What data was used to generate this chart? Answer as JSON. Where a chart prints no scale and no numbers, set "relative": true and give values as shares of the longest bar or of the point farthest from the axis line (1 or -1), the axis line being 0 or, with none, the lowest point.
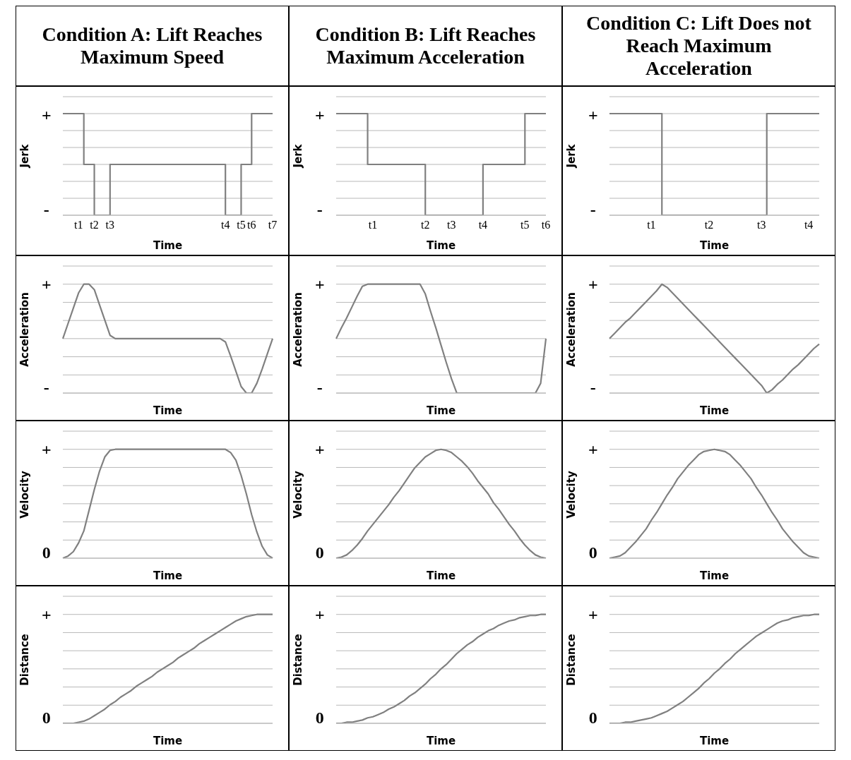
{
  "chart_data": [
    {
      "type": "step",
      "relative": true,
      "title": "Condition A: Lift Reaches Maximum Speed",
      "ylabel": "Jerk",
      "xlabel": "Time",
      "color": "#808080",
      "grid": "y",
      "annotations": [
        "+",
        "-"
      ],
      "categories": [
        null,
        null,
        null,
        "t1",
        null,
        null,
        "t2",
        null,
        null,
        "t3",
        null,
        null,
        null,
        null,
        null,
        null,
        null,
        null,
        null,
        null,
        null,
        null,
        null,
        null,
        null,
        null,
        null,
        null,
        null,
        null,
        null,
        "t4",
        null,
        null,
        "t5",
        null,
        "t6",
        null,
        null,
        null,
        "t7"
      ],
      "values": [
        1,
        1,
        1,
        1,
        0.5,
        0.5,
        0,
        0,
        0,
        0.5,
        0.5,
        0.5,
        0.5,
        0.5,
        0.5,
        0.5,
        0.5,
        0.5,
        0.5,
        0.5,
        0.5,
        0.5,
        0.5,
        0.5,
        0.5,
        0.5,
        0.5,
        0.5,
        0.5,
        0.5,
        0.5,
        0,
        0,
        0,
        0.5,
        0.5,
        1,
        1,
        1,
        1,
        1
      ]
    },
    {
      "type": "step",
      "relative": true,
      "title": "Condition B: Lift Reaches Maximum Acceleration",
      "ylabel": "Jerk",
      "xlabel": "Time",
      "color": "#808080",
      "grid": "y",
      "annotations": [
        "+",
        "-"
      ],
      "categories": [
        null,
        null,
        null,
        null,
        null,
        null,
        null,
        "t1",
        null,
        null,
        null,
        null,
        null,
        null,
        null,
        null,
        null,
        "t2",
        null,
        null,
        null,
        null,
        "t3",
        null,
        null,
        null,
        null,
        null,
        "t4",
        null,
        null,
        null,
        null,
        null,
        null,
        null,
        "t5",
        null,
        null,
        null,
        "t6"
      ],
      "values": [
        1,
        1,
        1,
        1,
        1,
        1,
        0.5,
        0.5,
        0.5,
        0.5,
        0.5,
        0.5,
        0.5,
        0.5,
        0.5,
        0.5,
        0.5,
        0,
        0,
        0,
        0,
        0,
        0,
        0,
        0,
        0,
        0,
        0,
        0.5,
        0.5,
        0.5,
        0.5,
        0.5,
        0.5,
        0.5,
        0.5,
        1,
        1,
        1,
        1,
        1
      ]
    },
    {
      "type": "step",
      "relative": true,
      "title": "Condition C: Lift Does not Reach Maximum Acceleration",
      "ylabel": "Jerk",
      "xlabel": "Time",
      "color": "#808080",
      "grid": "y",
      "annotations": [
        "+",
        "-"
      ],
      "categories": [
        null,
        null,
        null,
        null,
        null,
        null,
        null,
        null,
        "t1",
        null,
        null,
        null,
        null,
        null,
        null,
        null,
        null,
        null,
        null,
        "t2",
        null,
        null,
        null,
        null,
        null,
        null,
        null,
        null,
        null,
        "t3",
        null,
        null,
        null,
        null,
        null,
        null,
        null,
        null,
        "t4",
        null,
        null
      ],
      "values": [
        1,
        1,
        1,
        1,
        1,
        1,
        1,
        1,
        1,
        1,
        0,
        0,
        0,
        0,
        0,
        0,
        0,
        0,
        0,
        0,
        0,
        0,
        0,
        0,
        0,
        0,
        0,
        0,
        0,
        0,
        1,
        1,
        1,
        1,
        1,
        1,
        1,
        1,
        1,
        1,
        1
      ]
    },
    {
      "type": "line",
      "relative": true,
      "ylabel": "Acceleration",
      "xlabel": "Time",
      "color": "#808080",
      "grid": "y",
      "annotations": [
        "+",
        "-"
      ],
      "categories": [
        null,
        null,
        null,
        null,
        null,
        null,
        null,
        null,
        null,
        null,
        null,
        null,
        null,
        null,
        null,
        null,
        null,
        null,
        null,
        null,
        null,
        null,
        null,
        null,
        null,
        null,
        null,
        null,
        null,
        null,
        null,
        null,
        null,
        null,
        null,
        null,
        null,
        null,
        null,
        null,
        null
      ],
      "values": [
        0.5,
        0.64,
        0.78,
        0.92,
        1,
        1,
        0.95,
        0.81,
        0.67,
        0.53,
        0.5,
        0.5,
        0.5,
        0.5,
        0.5,
        0.5,
        0.5,
        0.5,
        0.5,
        0.5,
        0.5,
        0.5,
        0.5,
        0.5,
        0.5,
        0.5,
        0.5,
        0.5,
        0.5,
        0.5,
        0.5,
        0.47,
        0.34,
        0.2,
        0.06,
        0,
        0,
        0.09,
        0.22,
        0.36,
        0.5
      ]
    },
    {
      "type": "line",
      "relative": true,
      "ylabel": "Acceleration",
      "xlabel": "Time",
      "color": "#808080",
      "grid": "y",
      "annotations": [
        "+",
        "-"
      ],
      "categories": [
        null,
        null,
        null,
        null,
        null,
        null,
        null,
        null,
        null,
        null,
        null,
        null,
        null,
        null,
        null,
        null,
        null,
        null,
        null,
        null,
        null,
        null,
        null,
        null,
        null,
        null,
        null,
        null,
        null,
        null,
        null,
        null,
        null,
        null,
        null,
        null,
        null,
        null,
        null,
        null,
        null
      ],
      "values": [
        0.5,
        0.6,
        0.69,
        0.79,
        0.89,
        0.98,
        1,
        1,
        1,
        1,
        1,
        1,
        1,
        1,
        1,
        1,
        1,
        0.91,
        0.75,
        0.6,
        0.44,
        0.28,
        0.13,
        0,
        0,
        0,
        0,
        0,
        0,
        0,
        0,
        0,
        0,
        0,
        0,
        0,
        0,
        0,
        0,
        0.09,
        0.5
      ]
    },
    {
      "type": "line",
      "relative": true,
      "ylabel": "Acceleration",
      "xlabel": "Time",
      "color": "#808080",
      "grid": "y",
      "annotations": [
        "+",
        "-"
      ],
      "categories": [
        null,
        null,
        null,
        null,
        null,
        null,
        null,
        null,
        null,
        null,
        null,
        null,
        null,
        null,
        null,
        null,
        null,
        null,
        null,
        null,
        null,
        null,
        null,
        null,
        null,
        null,
        null,
        null,
        null,
        null,
        null,
        null,
        null,
        null,
        null,
        null,
        null,
        null,
        null,
        null,
        null
      ],
      "values": [
        0.5,
        0.55,
        0.6,
        0.65,
        0.69,
        0.74,
        0.79,
        0.84,
        0.89,
        0.94,
        1,
        0.97,
        0.92,
        0.87,
        0.82,
        0.77,
        0.72,
        0.67,
        0.62,
        0.57,
        0.52,
        0.47,
        0.42,
        0.37,
        0.32,
        0.27,
        0.22,
        0.17,
        0.12,
        0.07,
        0,
        0.03,
        0.08,
        0.12,
        0.17,
        0.22,
        0.26,
        0.31,
        0.36,
        0.41,
        0.45
      ]
    },
    {
      "type": "line",
      "relative": true,
      "ylabel": "Velocity",
      "xlabel": "Time",
      "color": "#808080",
      "grid": "y",
      "annotations": [
        "+",
        "0"
      ],
      "categories": [
        null,
        null,
        null,
        null,
        null,
        null,
        null,
        null,
        null,
        null,
        null,
        null,
        null,
        null,
        null,
        null,
        null,
        null,
        null,
        null,
        null,
        null,
        null,
        null,
        null,
        null,
        null,
        null,
        null,
        null,
        null,
        null,
        null,
        null,
        null,
        null,
        null,
        null,
        null,
        null,
        null
      ],
      "values": [
        0,
        0.02,
        0.06,
        0.14,
        0.25,
        0.44,
        0.63,
        0.8,
        0.93,
        0.99,
        1,
        1,
        1,
        1,
        1,
        1,
        1,
        1,
        1,
        1,
        1,
        1,
        1,
        1,
        1,
        1,
        1,
        1,
        1,
        1,
        1,
        1,
        0.97,
        0.9,
        0.76,
        0.59,
        0.4,
        0.24,
        0.11,
        0.03,
        0
      ]
    },
    {
      "type": "line",
      "relative": true,
      "ylabel": "Velocity",
      "xlabel": "Time",
      "color": "#808080",
      "grid": "y",
      "annotations": [
        "+",
        "0"
      ],
      "categories": [
        null,
        null,
        null,
        null,
        null,
        null,
        null,
        null,
        null,
        null,
        null,
        null,
        null,
        null,
        null,
        null,
        null,
        null,
        null,
        null,
        null,
        null,
        null,
        null,
        null,
        null,
        null,
        null,
        null,
        null,
        null,
        null,
        null,
        null,
        null,
        null,
        null,
        null,
        null,
        null,
        null
      ],
      "values": [
        0,
        0.01,
        0.03,
        0.07,
        0.12,
        0.18,
        0.25,
        0.31,
        0.37,
        0.43,
        0.49,
        0.56,
        0.62,
        0.69,
        0.76,
        0.83,
        0.88,
        0.93,
        0.96,
        0.99,
        1,
        0.99,
        0.97,
        0.93,
        0.89,
        0.84,
        0.78,
        0.71,
        0.65,
        0.59,
        0.51,
        0.45,
        0.38,
        0.31,
        0.25,
        0.18,
        0.12,
        0.07,
        0.03,
        0.01,
        0
      ]
    },
    {
      "type": "line",
      "relative": true,
      "ylabel": "Velocity",
      "xlabel": "Time",
      "color": "#808080",
      "grid": "y",
      "annotations": [
        "+",
        "0"
      ],
      "categories": [
        null,
        null,
        null,
        null,
        null,
        null,
        null,
        null,
        null,
        null,
        null,
        null,
        null,
        null,
        null,
        null,
        null,
        null,
        null,
        null,
        null,
        null,
        null,
        null,
        null,
        null,
        null,
        null,
        null,
        null,
        null,
        null,
        null,
        null,
        null,
        null,
        null,
        null,
        null,
        null,
        null
      ],
      "values": [
        0,
        0.01,
        0.02,
        0.05,
        0.1,
        0.15,
        0.21,
        0.27,
        0.35,
        0.42,
        0.5,
        0.58,
        0.65,
        0.73,
        0.79,
        0.85,
        0.9,
        0.95,
        0.98,
        0.99,
        1,
        0.99,
        0.98,
        0.95,
        0.9,
        0.85,
        0.79,
        0.73,
        0.65,
        0.58,
        0.5,
        0.42,
        0.35,
        0.27,
        0.21,
        0.15,
        0.1,
        0.05,
        0.02,
        0.01,
        0
      ]
    },
    {
      "type": "line",
      "relative": true,
      "ylabel": "Distance",
      "xlabel": "Time",
      "color": "#808080",
      "grid": "y",
      "annotations": [
        "+",
        "0"
      ],
      "categories": [
        null,
        null,
        null,
        null,
        null,
        null,
        null,
        null,
        null,
        null,
        null,
        null,
        null,
        null,
        null,
        null,
        null,
        null,
        null,
        null,
        null,
        null,
        null,
        null,
        null,
        null,
        null,
        null,
        null,
        null,
        null,
        null,
        null,
        null,
        null,
        null,
        null,
        null,
        null,
        null,
        null
      ],
      "values": [
        0,
        0,
        0,
        0.01,
        0.02,
        0.04,
        0.07,
        0.1,
        0.13,
        0.17,
        0.2,
        0.24,
        0.27,
        0.3,
        0.34,
        0.37,
        0.4,
        0.43,
        0.47,
        0.5,
        0.53,
        0.56,
        0.6,
        0.63,
        0.66,
        0.69,
        0.73,
        0.76,
        0.79,
        0.82,
        0.85,
        0.88,
        0.91,
        0.94,
        0.96,
        0.98,
        0.99,
        1,
        1,
        1,
        1
      ]
    },
    {
      "type": "line",
      "relative": true,
      "ylabel": "Distance",
      "xlabel": "Time",
      "color": "#808080",
      "grid": "y",
      "annotations": [
        "+",
        "0"
      ],
      "categories": [
        null,
        null,
        null,
        null,
        null,
        null,
        null,
        null,
        null,
        null,
        null,
        null,
        null,
        null,
        null,
        null,
        null,
        null,
        null,
        null,
        null,
        null,
        null,
        null,
        null,
        null,
        null,
        null,
        null,
        null,
        null,
        null,
        null,
        null,
        null,
        null,
        null,
        null,
        null,
        null,
        null
      ],
      "values": [
        0,
        0,
        0.01,
        0.01,
        0.02,
        0.03,
        0.05,
        0.06,
        0.08,
        0.1,
        0.13,
        0.15,
        0.18,
        0.21,
        0.25,
        0.28,
        0.32,
        0.36,
        0.41,
        0.45,
        0.5,
        0.54,
        0.59,
        0.64,
        0.68,
        0.72,
        0.75,
        0.79,
        0.82,
        0.85,
        0.87,
        0.9,
        0.92,
        0.94,
        0.95,
        0.97,
        0.98,
        0.99,
        0.99,
        1,
        1
      ]
    },
    {
      "type": "line",
      "relative": true,
      "ylabel": "Distance",
      "xlabel": "Time",
      "color": "#808080",
      "grid": "y",
      "annotations": [
        "+",
        "0"
      ],
      "categories": [
        null,
        null,
        null,
        null,
        null,
        null,
        null,
        null,
        null,
        null,
        null,
        null,
        null,
        null,
        null,
        null,
        null,
        null,
        null,
        null,
        null,
        null,
        null,
        null,
        null,
        null,
        null,
        null,
        null,
        null,
        null,
        null,
        null,
        null,
        null,
        null,
        null,
        null,
        null,
        null,
        null
      ],
      "values": [
        0,
        0,
        0,
        0.01,
        0.01,
        0.02,
        0.03,
        0.04,
        0.05,
        0.07,
        0.09,
        0.11,
        0.14,
        0.17,
        0.2,
        0.24,
        0.28,
        0.32,
        0.37,
        0.41,
        0.46,
        0.5,
        0.55,
        0.59,
        0.64,
        0.68,
        0.72,
        0.76,
        0.8,
        0.83,
        0.86,
        0.89,
        0.92,
        0.94,
        0.95,
        0.97,
        0.98,
        0.99,
        0.99,
        1,
        1
      ]
    }
  ]
}
